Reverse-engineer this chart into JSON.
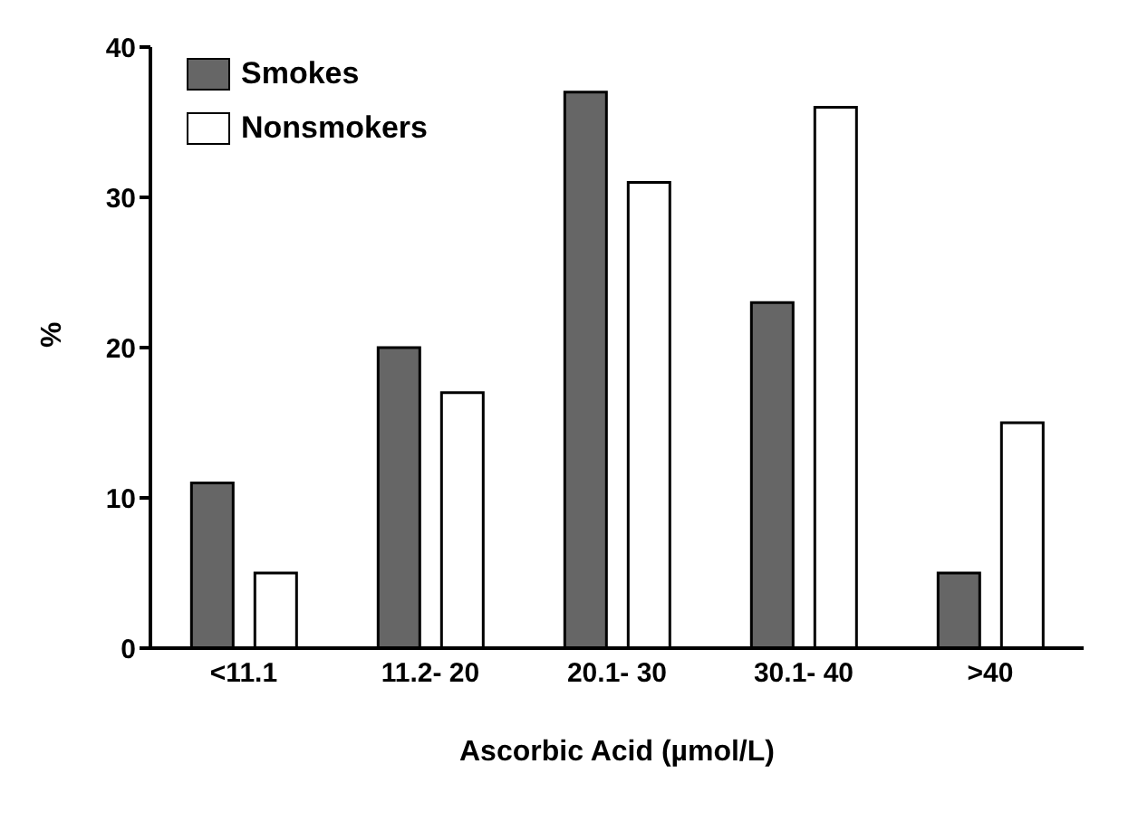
{
  "chart_data": {
    "type": "bar",
    "xlabel": "Ascorbic Acid (µmol/L)",
    "ylabel": "%",
    "categories": [
      "<11.1",
      "11.2- 20",
      "20.1- 30",
      "30.1- 40",
      ">40"
    ],
    "series": [
      {
        "name": "Smokes",
        "color": "#666666",
        "values": [
          11,
          20,
          37,
          23,
          5
        ]
      },
      {
        "name": "Nonsmokers",
        "color": "#ffffff",
        "values": [
          5,
          17,
          31,
          36,
          15
        ]
      }
    ],
    "ylim": [
      0,
      40
    ],
    "yticks": [
      0,
      10,
      20,
      30,
      40
    ],
    "grid": false,
    "legend": "top left"
  }
}
